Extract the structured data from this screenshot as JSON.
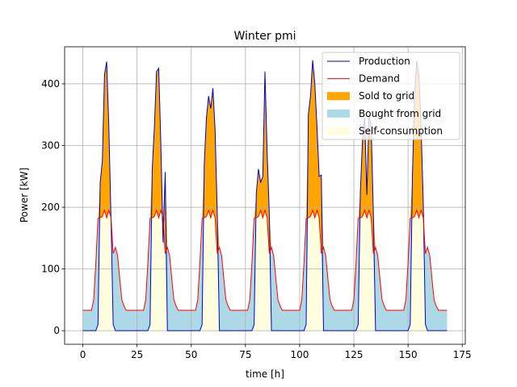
{
  "chart_data": {
    "type": "line",
    "title": "Winter pmi",
    "xlabel": "time [h]",
    "ylabel": "Power [kW]",
    "x": [
      0,
      1,
      2,
      3,
      4,
      5,
      6,
      7,
      8,
      9,
      10,
      11,
      12,
      13,
      14,
      15,
      16,
      17,
      18,
      19,
      20,
      21,
      22,
      23,
      24,
      25,
      26,
      27,
      28,
      29,
      30,
      31,
      32,
      33,
      34,
      35,
      36,
      37,
      38,
      39,
      40,
      41,
      42,
      43,
      44,
      45,
      46,
      47,
      48,
      49,
      50,
      51,
      52,
      53,
      54,
      55,
      56,
      57,
      58,
      59,
      60,
      61,
      62,
      63,
      64,
      65,
      66,
      67,
      68,
      69,
      70,
      71,
      72,
      73,
      74,
      75,
      76,
      77,
      78,
      79,
      80,
      81,
      82,
      83,
      84,
      85,
      86,
      87,
      88,
      89,
      90,
      91,
      92,
      93,
      94,
      95,
      96,
      97,
      98,
      99,
      100,
      101,
      102,
      103,
      104,
      105,
      106,
      107,
      108,
      109,
      110,
      111,
      112,
      113,
      114,
      115,
      116,
      117,
      118,
      119,
      120,
      121,
      122,
      123,
      124,
      125,
      126,
      127,
      128,
      129,
      130,
      131,
      132,
      133,
      134,
      135,
      136,
      137,
      138,
      139,
      140,
      141,
      142,
      143,
      144,
      145,
      146,
      147,
      148,
      149,
      150,
      151,
      152,
      153,
      154,
      155,
      156,
      157,
      158,
      159,
      160,
      161,
      162,
      163,
      164,
      165,
      166,
      167,
      168
    ],
    "series": [
      {
        "name": "Production",
        "color": "#0000cc",
        "values": [
          0,
          0,
          0,
          0,
          0,
          0,
          0,
          10,
          240,
          275,
          415,
          436,
          330,
          180,
          10,
          0,
          0,
          0,
          0,
          0,
          0,
          0,
          0,
          0,
          0,
          0,
          0,
          0,
          0,
          0,
          0,
          10,
          262,
          330,
          420,
          425,
          300,
          143,
          257,
          0,
          0,
          0,
          0,
          0,
          0,
          0,
          0,
          0,
          0,
          0,
          0,
          0,
          0,
          0,
          0,
          10,
          270,
          345,
          380,
          360,
          393,
          325,
          190,
          0,
          0,
          0,
          0,
          0,
          0,
          0,
          0,
          0,
          0,
          0,
          0,
          0,
          0,
          0,
          0,
          10,
          222,
          262,
          240,
          250,
          420,
          290,
          190,
          0,
          0,
          0,
          0,
          0,
          0,
          0,
          0,
          0,
          0,
          0,
          0,
          0,
          0,
          0,
          0,
          10,
          350,
          380,
          438,
          400,
          330,
          250,
          252,
          0,
          0,
          0,
          0,
          0,
          0,
          0,
          0,
          0,
          0,
          0,
          0,
          0,
          0,
          0,
          0,
          10,
          225,
          310,
          345,
          220,
          350,
          330,
          190,
          0,
          0,
          0,
          0,
          0,
          0,
          0,
          0,
          0,
          0,
          0,
          0,
          0,
          0,
          0,
          0,
          10,
          250,
          380,
          437,
          415,
          330,
          210,
          10,
          0,
          0,
          0,
          0,
          0,
          0,
          0,
          0,
          0,
          0
        ]
      },
      {
        "name": "Demand",
        "color": "#ff0000",
        "values": [
          33,
          33,
          33,
          33,
          33,
          50,
          110,
          182,
          183,
          185,
          195,
          183,
          195,
          183,
          125,
          135,
          122,
          85,
          50,
          40,
          33,
          33,
          33,
          33,
          33,
          33,
          33,
          33,
          33,
          50,
          110,
          182,
          183,
          185,
          195,
          183,
          195,
          183,
          125,
          135,
          122,
          85,
          50,
          40,
          33,
          33,
          33,
          33,
          33,
          33,
          33,
          33,
          33,
          50,
          110,
          182,
          183,
          185,
          195,
          183,
          195,
          183,
          125,
          135,
          122,
          85,
          50,
          40,
          33,
          33,
          33,
          33,
          33,
          33,
          33,
          33,
          33,
          50,
          110,
          182,
          183,
          185,
          195,
          183,
          195,
          183,
          125,
          135,
          122,
          85,
          50,
          40,
          33,
          33,
          33,
          33,
          33,
          33,
          33,
          33,
          33,
          50,
          110,
          182,
          183,
          185,
          195,
          183,
          195,
          183,
          125,
          135,
          122,
          85,
          50,
          40,
          33,
          33,
          33,
          33,
          33,
          33,
          33,
          33,
          33,
          50,
          110,
          182,
          183,
          185,
          195,
          183,
          195,
          183,
          125,
          135,
          122,
          85,
          50,
          40,
          33,
          33,
          33,
          33,
          33,
          33,
          33,
          33,
          33,
          50,
          110,
          182,
          183,
          185,
          195,
          183,
          195,
          183,
          125,
          135,
          122,
          85,
          50,
          40,
          33,
          33,
          33,
          33,
          33
        ]
      }
    ],
    "areas": [
      {
        "name": "Sold to grid",
        "color": "#ffa500"
      },
      {
        "name": "Bought from grid",
        "color": "#add8e6"
      },
      {
        "name": "Self-consumption",
        "color": "#ffffe0"
      }
    ],
    "xlim": [
      -8.4,
      176.4
    ],
    "xticks": [
      0,
      25,
      50,
      75,
      100,
      125,
      150,
      175
    ],
    "ylim": [
      -22,
      460
    ],
    "yticks": [
      0,
      100,
      200,
      300,
      400
    ],
    "grid": true,
    "legend": "upper right"
  }
}
